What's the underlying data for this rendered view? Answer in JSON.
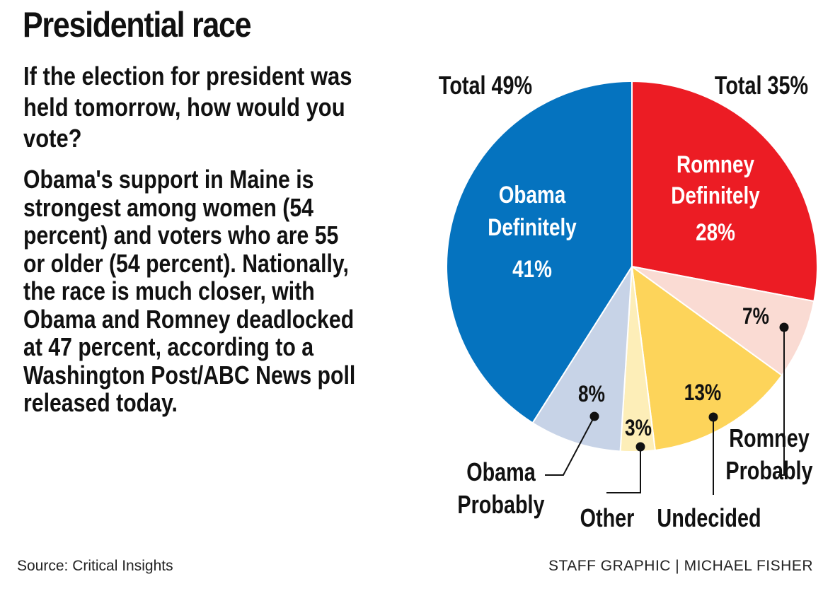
{
  "title": "Presidential race",
  "question": "If the election for president was held tomorrow, how would you vote?",
  "body": "Obama's support in Maine is strongest among women (54 percent) and voters who are 55 or older (54 percent). Nationally, the race is much closer, with Obama and Romney deadlocked at 47 percent, according to a Washington Post/ABC News poll released today.",
  "source": "Source: Critical Insights",
  "credit": "STAFF GRAPHIC | MICHAEL FISHER",
  "chart_data": {
    "type": "pie",
    "start": "12 o'clock, clockwise",
    "slices": [
      {
        "label": "Romney Definitely",
        "value": 28,
        "display": "28%",
        "color": "#ec1c24"
      },
      {
        "label": "Romney Probably",
        "value": 7,
        "display": "7%",
        "color": "#fadbd3"
      },
      {
        "label": "Undecided",
        "value": 13,
        "display": "13%",
        "color": "#fdd45a"
      },
      {
        "label": "Other",
        "value": 3,
        "display": "3%",
        "color": "#fdeeb8"
      },
      {
        "label": "Obama Probably",
        "value": 8,
        "display": "8%",
        "color": "#c7d3e7"
      },
      {
        "label": "Obama Definitely",
        "value": 41,
        "display": "41%",
        "color": "#0573bf"
      }
    ],
    "totals": [
      {
        "label": "Total 49%",
        "side": "left"
      },
      {
        "label": "Total 35%",
        "side": "right"
      }
    ]
  }
}
